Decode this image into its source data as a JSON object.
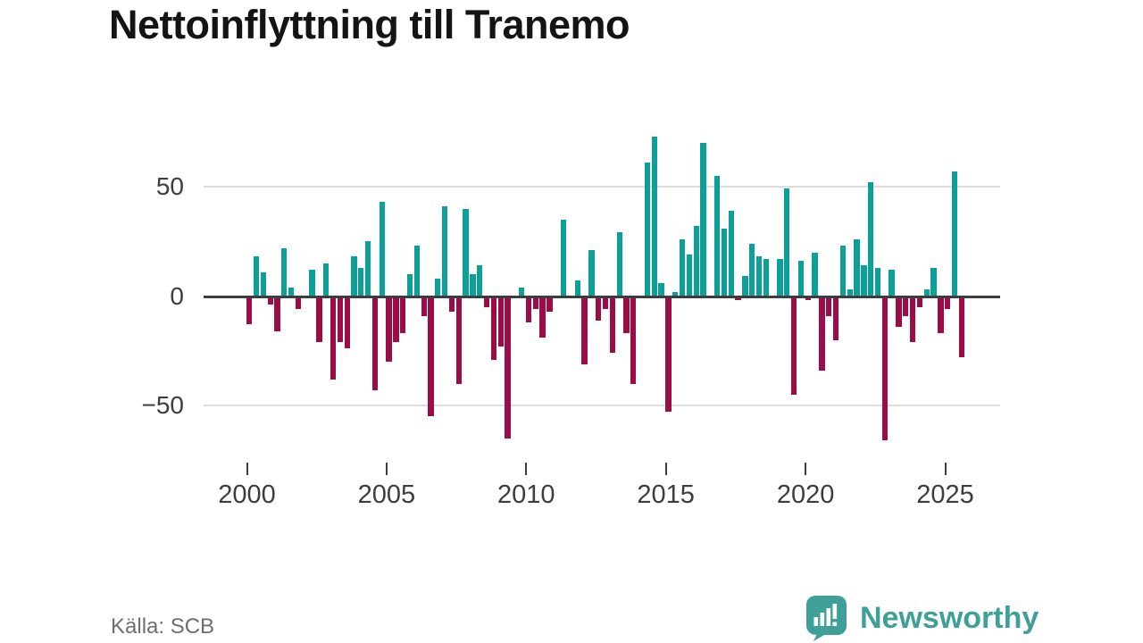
{
  "title": "Nettoinflyttning till Tranemo",
  "source": "Källa: SCB",
  "branding": {
    "logo_text": "Newsworthy",
    "logo_icon": "bar-chart-speech-bubble-icon"
  },
  "colors": {
    "positive_bar": "#0da099",
    "negative_bar": "#9c0d47",
    "zero_axis": "#3d3d3d",
    "gridline": "#dddddd",
    "logo_teal": "#3fa099",
    "tick_text": "#3d3d3d",
    "source_text": "#6e6e6e"
  },
  "chart_data": {
    "type": "bar",
    "title": "Nettoinflyttning till Tranemo",
    "frequency": "quarterly",
    "x_start": {
      "year": 2000,
      "quarter": 1
    },
    "x_end": {
      "year": 2025,
      "quarter": 3
    },
    "x_tick_years": [
      2000,
      2005,
      2010,
      2015,
      2020,
      2025
    ],
    "x_tick_labels": [
      "2000",
      "2005",
      "2010",
      "2015",
      "2020",
      "2025"
    ],
    "y_ticks": [
      {
        "value": 50,
        "label": "50"
      },
      {
        "value": 0,
        "label": "0"
      },
      {
        "value": -50,
        "label": "−50"
      }
    ],
    "ylim": [
      -75,
      85
    ],
    "grid": "horizontal",
    "legend": "none",
    "values": [
      -13,
      18,
      11,
      -4,
      -16,
      22,
      4,
      -6,
      0,
      12,
      -21,
      15,
      -38,
      -21,
      -24,
      18,
      13,
      25,
      -43,
      43,
      -30,
      -21,
      -17,
      10,
      23,
      -9,
      -55,
      8,
      41,
      -7,
      -40,
      40,
      10,
      14,
      -5,
      -29,
      -23,
      -65,
      0,
      4,
      -12,
      -6,
      -19,
      -7,
      0,
      35,
      0,
      7,
      -31,
      21,
      -11,
      -6,
      -26,
      29,
      -17,
      -40,
      0,
      61,
      73,
      6,
      -53,
      2,
      26,
      19,
      32,
      70,
      0,
      55,
      31,
      39,
      -2,
      9,
      24,
      18,
      17,
      0,
      17,
      49,
      -45,
      16,
      -2,
      20,
      -34,
      -9,
      -20,
      23,
      3,
      26,
      14,
      52,
      13,
      -66,
      12,
      -14,
      -9,
      -21,
      -5,
      3,
      13,
      -17,
      -6,
      57,
      -28
    ]
  }
}
